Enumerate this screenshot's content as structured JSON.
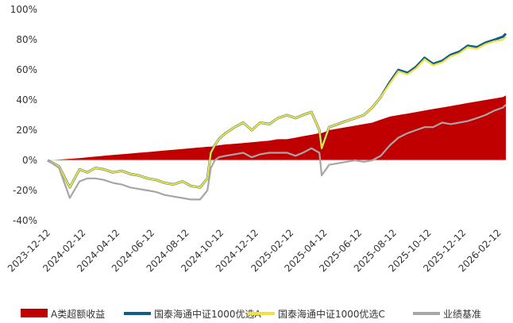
{
  "chart_data": {
    "type": "line",
    "x_dates": [
      "2023-12-12",
      "2024-01-01",
      "2024-01-20",
      "2024-02-06",
      "2024-02-20",
      "2024-03-05",
      "2024-03-20",
      "2024-04-05",
      "2024-04-20",
      "2024-05-05",
      "2024-05-20",
      "2024-06-05",
      "2024-06-20",
      "2024-07-05",
      "2024-07-20",
      "2024-08-05",
      "2024-08-20",
      "2024-09-05",
      "2024-09-18",
      "2024-09-24",
      "2024-10-01",
      "2024-10-08",
      "2024-10-20",
      "2024-11-05",
      "2024-11-20",
      "2024-12-05",
      "2024-12-20",
      "2025-01-05",
      "2025-01-20",
      "2025-02-05",
      "2025-02-20",
      "2025-03-05",
      "2025-03-20",
      "2025-04-03",
      "2025-04-07",
      "2025-04-20",
      "2025-05-05",
      "2025-05-20",
      "2025-06-05",
      "2025-06-20",
      "2025-07-05",
      "2025-07-20",
      "2025-08-05",
      "2025-08-20",
      "2025-09-05",
      "2025-09-20",
      "2025-10-05",
      "2025-10-20",
      "2025-11-05",
      "2025-11-20",
      "2025-12-05",
      "2025-12-20",
      "2026-01-05",
      "2026-01-20",
      "2026-02-05",
      "2026-02-20",
      "2026-02-25"
    ],
    "series": [
      {
        "name": "A类超额收益",
        "color": "#C00000",
        "kind": "area",
        "values": [
          0,
          0.5,
          1,
          1.5,
          2,
          2.5,
          3,
          3.5,
          4,
          4.5,
          5,
          5.5,
          6,
          6.5,
          7,
          7.5,
          8,
          8.5,
          9,
          9,
          9.5,
          10,
          10.5,
          11,
          11.5,
          12,
          12.5,
          13,
          14,
          14,
          15,
          16,
          17,
          18,
          18,
          20,
          21,
          22,
          23,
          24,
          25,
          27,
          29,
          30,
          31,
          32,
          33,
          34,
          35,
          36,
          37,
          38,
          39,
          40,
          41,
          42,
          43
        ]
      },
      {
        "name": "国泰海通中证1000优选A",
        "color": "#0F5D8C",
        "kind": "line",
        "values": [
          0,
          -4,
          -18,
          -6,
          -8,
          -5,
          -6,
          -8,
          -7,
          -9,
          -10,
          -12,
          -13,
          -15,
          -16,
          -14,
          -17,
          -18,
          -12,
          5,
          10,
          14,
          18,
          22,
          25,
          20,
          25,
          24,
          28,
          30,
          28,
          30,
          32,
          20,
          8,
          22,
          24,
          26,
          28,
          30,
          35,
          42,
          52,
          60,
          58,
          62,
          68,
          64,
          66,
          70,
          72,
          76,
          75,
          78,
          80,
          82,
          84
        ]
      },
      {
        "name": "国泰海通中证1000优选C",
        "color": "#F0E040",
        "kind": "line",
        "values": [
          0,
          -4,
          -18,
          -6,
          -8,
          -5,
          -6,
          -8,
          -7,
          -9,
          -10,
          -12,
          -13,
          -15,
          -16,
          -14,
          -17,
          -18,
          -12,
          5,
          10,
          14,
          18,
          22,
          25,
          20,
          25,
          24,
          28,
          30,
          28,
          30,
          32,
          20,
          8,
          22,
          24,
          26,
          28,
          30,
          35,
          42,
          51,
          59,
          57,
          61,
          67,
          63,
          65,
          69,
          71,
          75,
          74,
          77,
          79,
          80,
          82
        ]
      },
      {
        "name": "业绩基准",
        "color": "#A6A6A6",
        "kind": "line",
        "values": [
          0,
          -5,
          -25,
          -14,
          -12,
          -12,
          -13,
          -15,
          -16,
          -18,
          -19,
          -20,
          -21,
          -23,
          -24,
          -25,
          -26,
          -26,
          -20,
          -5,
          0,
          2,
          3,
          4,
          5,
          2,
          4,
          5,
          5,
          5,
          3,
          5,
          8,
          5,
          -10,
          -3,
          -2,
          -1,
          0,
          -1,
          0,
          3,
          10,
          15,
          18,
          20,
          22,
          22,
          25,
          24,
          25,
          26,
          28,
          30,
          33,
          35,
          37
        ]
      }
    ],
    "x_tick_labels": [
      "2023-12-12",
      "2024-02-12",
      "2024-04-12",
      "2024-06-12",
      "2024-08-12",
      "2024-10-12",
      "2024-12-12",
      "2025-02-12",
      "2025-04-12",
      "2025-06-12",
      "2025-08-12",
      "2025-10-12",
      "2025-12-12",
      "2026-02-12"
    ],
    "y_tick_labels": [
      "100%",
      "80%",
      "60%",
      "40%",
      "20%",
      "0%",
      "-20%",
      "-40%"
    ],
    "ylim": [
      -40,
      100
    ],
    "grid": false,
    "legend_position": "bottom",
    "title": "",
    "xlabel": "",
    "ylabel": ""
  }
}
